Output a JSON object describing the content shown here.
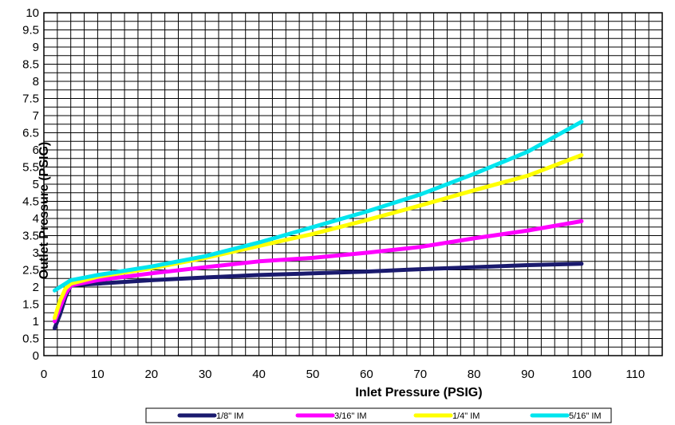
{
  "chart_data": {
    "type": "line",
    "xlabel": "Inlet Pressure  (PSIG)",
    "ylabel": "Outlet Pressure (PSIG)",
    "xlim": [
      0,
      115
    ],
    "ylim": [
      0,
      10
    ],
    "x_ticks": [
      "0",
      "10",
      "20",
      "30",
      "40",
      "50",
      "60",
      "70",
      "80",
      "90",
      "100",
      "110"
    ],
    "y_ticks": [
      "0",
      "0.5",
      "1",
      "1.5",
      "2",
      "2.5",
      "3",
      "3.5",
      "4",
      "4.5",
      "5",
      "5.5",
      "6",
      "6.5",
      "7",
      "7.5",
      "8",
      "8.5",
      "9",
      "9.5",
      "10"
    ],
    "grid": true,
    "legend_position": "bottom",
    "series": [
      {
        "name": "1/8\" IM",
        "color": "#1a1a6e",
        "points": [
          [
            2,
            0.8
          ],
          [
            3,
            1.2
          ],
          [
            4,
            1.7
          ],
          [
            5,
            2.05
          ],
          [
            10,
            2.1
          ],
          [
            20,
            2.2
          ],
          [
            30,
            2.28
          ],
          [
            40,
            2.35
          ],
          [
            50,
            2.4
          ],
          [
            60,
            2.45
          ],
          [
            70,
            2.52
          ],
          [
            80,
            2.58
          ],
          [
            90,
            2.64
          ],
          [
            100,
            2.68
          ]
        ]
      },
      {
        "name": "3/16\" IM",
        "color": "#ff00ff",
        "points": [
          [
            2,
            1.0
          ],
          [
            3,
            1.4
          ],
          [
            4,
            1.8
          ],
          [
            5,
            2.05
          ],
          [
            10,
            2.2
          ],
          [
            20,
            2.4
          ],
          [
            30,
            2.58
          ],
          [
            40,
            2.75
          ],
          [
            50,
            2.85
          ],
          [
            60,
            3.0
          ],
          [
            70,
            3.17
          ],
          [
            80,
            3.42
          ],
          [
            90,
            3.65
          ],
          [
            100,
            3.92
          ]
        ]
      },
      {
        "name": "1/4\" IM",
        "color": "#ffff00",
        "points": [
          [
            2,
            1.1
          ],
          [
            3,
            1.6
          ],
          [
            4,
            1.95
          ],
          [
            5,
            2.1
          ],
          [
            10,
            2.3
          ],
          [
            20,
            2.55
          ],
          [
            30,
            2.85
          ],
          [
            40,
            3.2
          ],
          [
            50,
            3.55
          ],
          [
            60,
            3.95
          ],
          [
            70,
            4.38
          ],
          [
            80,
            4.82
          ],
          [
            90,
            5.25
          ],
          [
            100,
            5.85
          ]
        ]
      },
      {
        "name": "5/16\" IM",
        "color": "#00e5ee",
        "points": [
          [
            2,
            1.9
          ],
          [
            3,
            2.0
          ],
          [
            4,
            2.1
          ],
          [
            5,
            2.2
          ],
          [
            10,
            2.35
          ],
          [
            20,
            2.6
          ],
          [
            30,
            2.9
          ],
          [
            40,
            3.3
          ],
          [
            50,
            3.75
          ],
          [
            60,
            4.2
          ],
          [
            70,
            4.7
          ],
          [
            80,
            5.3
          ],
          [
            90,
            5.95
          ],
          [
            100,
            6.82
          ]
        ]
      }
    ]
  }
}
